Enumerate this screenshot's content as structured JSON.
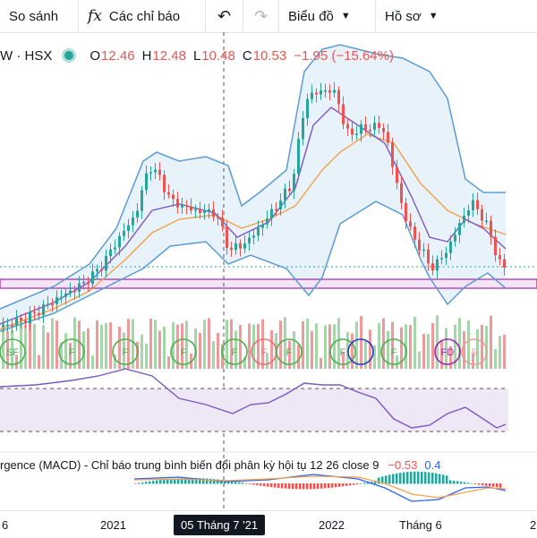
{
  "toolbar": {
    "compare": "So sánh",
    "indicators": "Các chỉ báo",
    "chart_menu": "Biểu đồ",
    "profile_menu": "Hồ sơ",
    "icons": {
      "indicators": "fx-icon",
      "undo": "undo-icon",
      "redo": "redo-icon",
      "dropdown": "chevron-down-icon"
    }
  },
  "legend": {
    "symbol": "W · HSX",
    "open_label": "O",
    "open": "12.46",
    "high_label": "H",
    "high": "12.48",
    "low_label": "L",
    "low": "10.48",
    "close_label": "C",
    "close": "10.53",
    "change": "−1.95 (−15.64%)"
  },
  "macd_legend": {
    "title": "rgence (MACD) - Chỉ báo trung bình biến đổi phân kỳ hội tụ 12 26 close 9",
    "value1": "−0.53",
    "value2": "0.4"
  },
  "time_axis": {
    "labels": [
      "6",
      "2021",
      "2022",
      "Tháng 6",
      "2"
    ],
    "crosshair": "05 Tháng 7 '21"
  },
  "signals": [
    "SF",
    "F",
    "F",
    "F",
    "F",
    "F",
    "F",
    "F",
    "F",
    "FD",
    "S"
  ],
  "colors": {
    "up": "#26a69a",
    "down": "#ef5350",
    "band": "#5b9bd5",
    "ma": "#f5a04a",
    "mid": "#7e57c2"
  }
}
